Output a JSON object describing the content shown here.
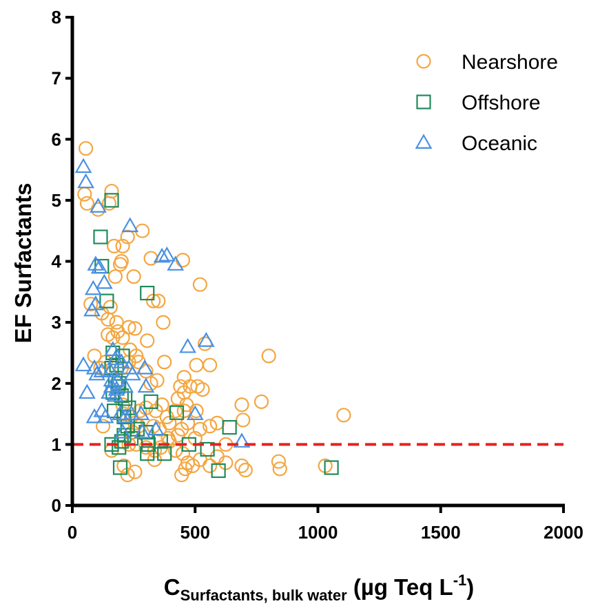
{
  "chart_data": {
    "type": "scatter",
    "xlim": [
      0,
      2000
    ],
    "ylim": [
      0,
      8
    ],
    "x_ticks": [
      "0",
      "500",
      "1000",
      "1500",
      "2000"
    ],
    "y_ticks": [
      "0",
      "1",
      "2",
      "3",
      "4",
      "5",
      "6",
      "7",
      "8"
    ],
    "ylabel": "EF Surfactants",
    "xlabel": {
      "main": "C",
      "subscript": "Surfactants, bulk water",
      "unit_prefix": " (µg Teq L",
      "superscript": "-1",
      "unit_suffix": ")"
    },
    "legend_position": "top-right",
    "reference_line": {
      "y": 1,
      "color": "#e8211f",
      "style": "dashed"
    },
    "series": [
      {
        "name": "Nearshore",
        "marker": "circle",
        "color": "#f4a641",
        "points": [
          [
            55,
            5.85
          ],
          [
            50,
            5.1
          ],
          [
            60,
            4.95
          ],
          [
            105,
            4.85
          ],
          [
            160,
            5.15
          ],
          [
            150,
            4.95
          ],
          [
            170,
            4.25
          ],
          [
            200,
            4.0
          ],
          [
            225,
            4.4
          ],
          [
            195,
            3.95
          ],
          [
            175,
            3.75
          ],
          [
            250,
            3.75
          ],
          [
            285,
            4.5
          ],
          [
            205,
            4.25
          ],
          [
            320,
            4.05
          ],
          [
            450,
            4.02
          ],
          [
            330,
            3.35
          ],
          [
            350,
            3.35
          ],
          [
            520,
            3.62
          ],
          [
            75,
            3.3
          ],
          [
            155,
            3.25
          ],
          [
            120,
            3.15
          ],
          [
            145,
            3.05
          ],
          [
            180,
            3.0
          ],
          [
            230,
            2.92
          ],
          [
            255,
            2.9
          ],
          [
            185,
            2.85
          ],
          [
            370,
            3.0
          ],
          [
            165,
            2.75
          ],
          [
            145,
            2.8
          ],
          [
            205,
            2.75
          ],
          [
            235,
            2.55
          ],
          [
            270,
            2.35
          ],
          [
            305,
            2.7
          ],
          [
            230,
            2.35
          ],
          [
            260,
            2.45
          ],
          [
            300,
            2.2
          ],
          [
            345,
            2.05
          ],
          [
            320,
            2.0
          ],
          [
            375,
            2.35
          ],
          [
            505,
            2.3
          ],
          [
            540,
            2.65
          ],
          [
            560,
            2.3
          ],
          [
            800,
            2.45
          ],
          [
            90,
            2.45
          ],
          [
            135,
            2.35
          ],
          [
            115,
            2.25
          ],
          [
            200,
            2.25
          ],
          [
            455,
            2.1
          ],
          [
            480,
            1.95
          ],
          [
            455,
            1.85
          ],
          [
            430,
            1.75
          ],
          [
            440,
            1.95
          ],
          [
            465,
            1.65
          ],
          [
            510,
            1.95
          ],
          [
            530,
            1.9
          ],
          [
            455,
            1.55
          ],
          [
            340,
            1.55
          ],
          [
            365,
            1.65
          ],
          [
            385,
            1.45
          ],
          [
            300,
            1.6
          ],
          [
            275,
            1.55
          ],
          [
            240,
            1.45
          ],
          [
            210,
            1.5
          ],
          [
            205,
            1.65
          ],
          [
            255,
            1.35
          ],
          [
            270,
            1.3
          ],
          [
            330,
            1.3
          ],
          [
            355,
            1.25
          ],
          [
            395,
            1.35
          ],
          [
            420,
            1.55
          ],
          [
            430,
            1.15
          ],
          [
            445,
            1.25
          ],
          [
            470,
            1.35
          ],
          [
            505,
            1.55
          ],
          [
            520,
            1.25
          ],
          [
            560,
            1.3
          ],
          [
            590,
            1.35
          ],
          [
            690,
            1.65
          ],
          [
            770,
            1.7
          ],
          [
            695,
            1.4
          ],
          [
            1105,
            1.48
          ],
          [
            125,
            1.3
          ],
          [
            200,
            1.05
          ],
          [
            230,
            1.0
          ],
          [
            260,
            1.0
          ],
          [
            300,
            0.95
          ],
          [
            335,
            0.9
          ],
          [
            360,
            0.95
          ],
          [
            395,
            1.05
          ],
          [
            420,
            0.9
          ],
          [
            450,
            0.85
          ],
          [
            490,
            0.65
          ],
          [
            520,
            0.75
          ],
          [
            590,
            0.8
          ],
          [
            625,
            1.0
          ],
          [
            460,
            0.6
          ],
          [
            445,
            0.5
          ],
          [
            470,
            0.7
          ],
          [
            560,
            0.65
          ],
          [
            625,
            0.7
          ],
          [
            690,
            0.65
          ],
          [
            705,
            0.58
          ],
          [
            845,
            0.6
          ],
          [
            840,
            0.72
          ],
          [
            1030,
            0.65
          ],
          [
            225,
            0.5
          ],
          [
            255,
            0.55
          ],
          [
            210,
            0.65
          ],
          [
            160,
            0.9
          ],
          [
            390,
            1.1
          ],
          [
            245,
            1.2
          ],
          [
            335,
            0.75
          ],
          [
            500,
            1.1
          ]
        ]
      },
      {
        "name": "Offshore",
        "marker": "square",
        "color": "#1f8a5a",
        "points": [
          [
            160,
            5.0
          ],
          [
            115,
            4.4
          ],
          [
            120,
            3.92
          ],
          [
            305,
            3.48
          ],
          [
            140,
            3.35
          ],
          [
            165,
            2.5
          ],
          [
            205,
            2.45
          ],
          [
            160,
            2.25
          ],
          [
            180,
            2.3
          ],
          [
            175,
            2.05
          ],
          [
            190,
            2.0
          ],
          [
            165,
            1.85
          ],
          [
            200,
            1.8
          ],
          [
            215,
            1.75
          ],
          [
            185,
            1.95
          ],
          [
            170,
            1.55
          ],
          [
            210,
            1.45
          ],
          [
            230,
            1.6
          ],
          [
            320,
            1.7
          ],
          [
            425,
            1.52
          ],
          [
            225,
            1.3
          ],
          [
            265,
            1.25
          ],
          [
            300,
            1.2
          ],
          [
            210,
            1.15
          ],
          [
            240,
            1.1
          ],
          [
            200,
            1.05
          ],
          [
            160,
            1.0
          ],
          [
            190,
            0.95
          ],
          [
            310,
            1.0
          ],
          [
            360,
            1.05
          ],
          [
            475,
            1.0
          ],
          [
            305,
            0.85
          ],
          [
            375,
            0.85
          ],
          [
            550,
            0.92
          ],
          [
            640,
            1.28
          ],
          [
            195,
            0.62
          ],
          [
            595,
            0.57
          ],
          [
            1055,
            0.62
          ]
        ]
      },
      {
        "name": "Oceanic",
        "marker": "triangle",
        "color": "#4a90e2",
        "points": [
          [
            45,
            5.55
          ],
          [
            55,
            5.3
          ],
          [
            105,
            4.9
          ],
          [
            235,
            4.58
          ],
          [
            95,
            3.95
          ],
          [
            110,
            3.9
          ],
          [
            130,
            3.65
          ],
          [
            365,
            4.08
          ],
          [
            385,
            4.1
          ],
          [
            420,
            3.95
          ],
          [
            85,
            3.55
          ],
          [
            80,
            3.2
          ],
          [
            95,
            3.3
          ],
          [
            45,
            2.3
          ],
          [
            90,
            2.25
          ],
          [
            100,
            2.15
          ],
          [
            120,
            2.2
          ],
          [
            165,
            2.55
          ],
          [
            175,
            2.4
          ],
          [
            200,
            2.35
          ],
          [
            155,
            2.2
          ],
          [
            230,
            2.25
          ],
          [
            295,
            2.25
          ],
          [
            160,
            2.05
          ],
          [
            185,
            2.05
          ],
          [
            160,
            1.95
          ],
          [
            215,
            1.95
          ],
          [
            245,
            2.15
          ],
          [
            300,
            1.95
          ],
          [
            470,
            2.6
          ],
          [
            545,
            2.7
          ],
          [
            60,
            1.85
          ],
          [
            150,
            1.85
          ],
          [
            175,
            1.8
          ],
          [
            180,
            1.9
          ],
          [
            120,
            1.55
          ],
          [
            90,
            1.45
          ],
          [
            135,
            1.45
          ],
          [
            195,
            1.5
          ],
          [
            215,
            1.45
          ],
          [
            240,
            1.5
          ],
          [
            280,
            1.5
          ],
          [
            500,
            1.5
          ],
          [
            205,
            1.2
          ],
          [
            285,
            1.2
          ],
          [
            340,
            1.25
          ],
          [
            690,
            1.05
          ]
        ]
      }
    ]
  }
}
